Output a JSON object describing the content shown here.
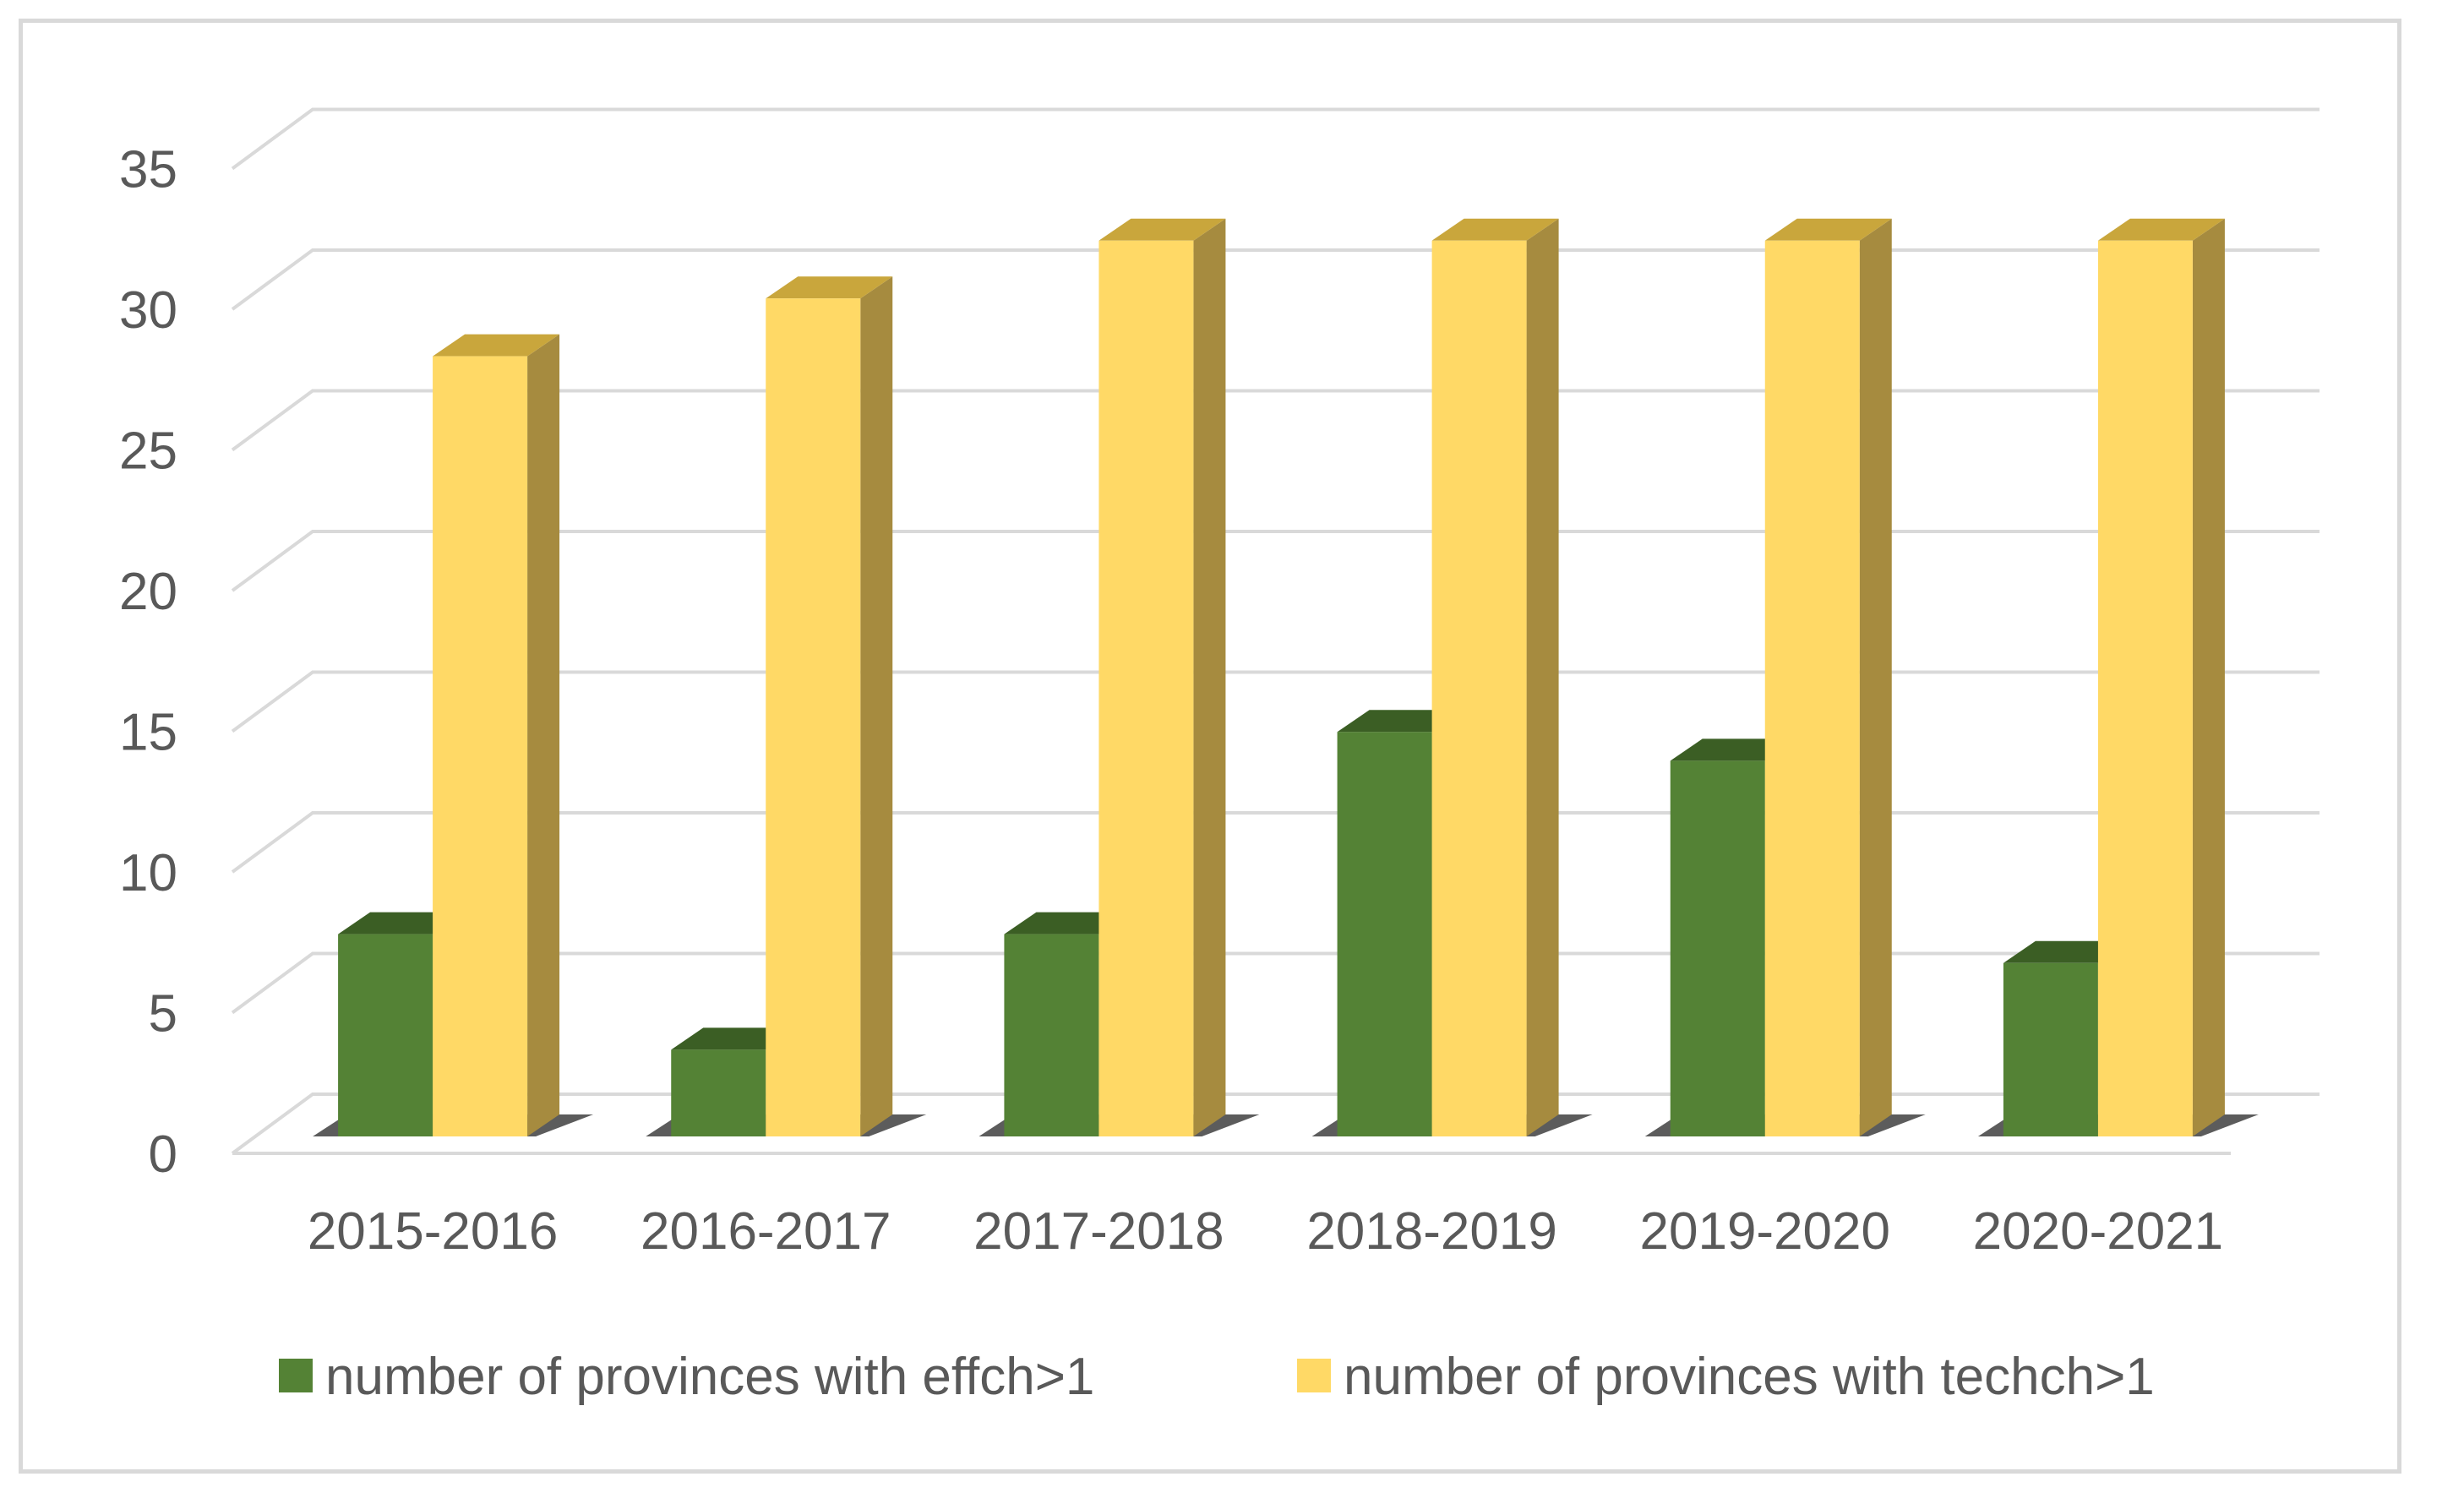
{
  "chart_data": {
    "type": "bar",
    "title": "",
    "xlabel": "",
    "ylabel": "",
    "categories": [
      "2015-2016",
      "2016-2017",
      "2017-2018",
      "2018-2019",
      "2019-2020",
      "2020-2021"
    ],
    "series": [
      {
        "name": "number of provinces with effch>1",
        "values": [
          7,
          3,
          7,
          14,
          13,
          6
        ],
        "color": "#548235",
        "top_color": "#3b5e24",
        "side_color": "#3f6228"
      },
      {
        "name": "number of provinces with techch>1",
        "values": [
          27,
          29,
          31,
          31,
          31,
          31
        ],
        "color": "#ffd966",
        "top_color": "#c9a63c",
        "side_color": "#a68b3f"
      }
    ],
    "yticks": [
      "0",
      "5",
      "10",
      "15",
      "20",
      "25",
      "30",
      "35"
    ],
    "ylim": [
      0,
      35
    ],
    "grid": true,
    "legend_position": "bottom",
    "style": "3d-clustered-column"
  }
}
